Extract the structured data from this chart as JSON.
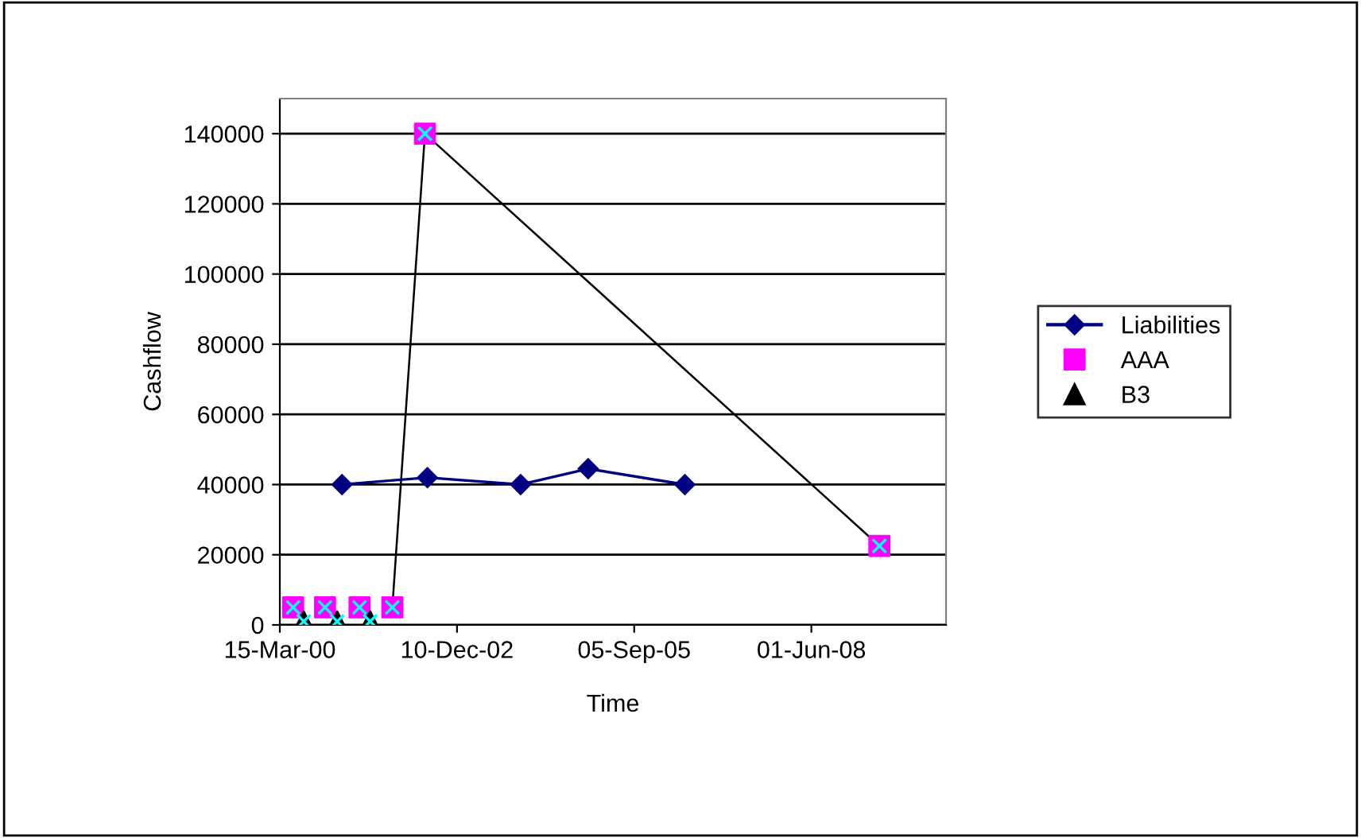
{
  "chart_data": {
    "type": "line",
    "xlabel": "Time",
    "ylabel": "Cashflow",
    "xlim": [
      "2000-03-15",
      "2010-07-01"
    ],
    "xticks": [
      {
        "value": "2000-03-15",
        "label": "15-Mar-00"
      },
      {
        "value": "2002-12-10",
        "label": "10-Dec-02"
      },
      {
        "value": "2005-09-05",
        "label": "05-Sep-05"
      },
      {
        "value": "2008-06-01",
        "label": "01-Jun-08"
      }
    ],
    "ylim": [
      0,
      150000
    ],
    "yticks": [
      0,
      20000,
      40000,
      60000,
      80000,
      100000,
      120000,
      140000
    ],
    "grid": "y",
    "legend": "right",
    "series": [
      {
        "name": "Liabilities",
        "marker": "diamond",
        "color": "#000080",
        "x": [
          "2001-03-01",
          "2002-06-26",
          "2003-12-04",
          "2004-12-19",
          "2006-06-18"
        ],
        "values": [
          40000,
          42000,
          40000,
          44500,
          40000
        ]
      },
      {
        "marker": "none",
        "color": "#000000",
        "x": [
          "2001-12-10",
          "2002-06-12",
          "2009-06-20"
        ],
        "values": [
          5000,
          140000,
          22500
        ]
      },
      {
        "name": "AAA",
        "type": "scatter",
        "marker": "square",
        "color": "#ff00ff",
        "x": [
          "2000-05-29",
          "2000-11-25",
          "2001-06-08",
          "2001-12-10",
          "2002-06-12",
          "2009-06-20"
        ],
        "values": [
          5000,
          5000,
          5000,
          5000,
          140000,
          22500
        ]
      },
      {
        "name": "B3",
        "type": "scatter",
        "marker": "triangle",
        "color": "#000000",
        "x": [
          "2000-07-28",
          "2001-02-02",
          "2001-08-07"
        ],
        "values": [
          1000,
          1000,
          1000
        ]
      },
      {
        "type": "scatter",
        "marker": "cross",
        "color": "#00ffff",
        "x": [
          "2000-05-29",
          "2000-11-25",
          "2001-06-08",
          "2001-12-10",
          "2002-06-12",
          "2009-06-20",
          "2000-07-28",
          "2001-02-02",
          "2001-08-07"
        ],
        "values": [
          5000,
          5000,
          5000,
          5000,
          140000,
          22500,
          1000,
          1000,
          1000
        ]
      }
    ]
  }
}
